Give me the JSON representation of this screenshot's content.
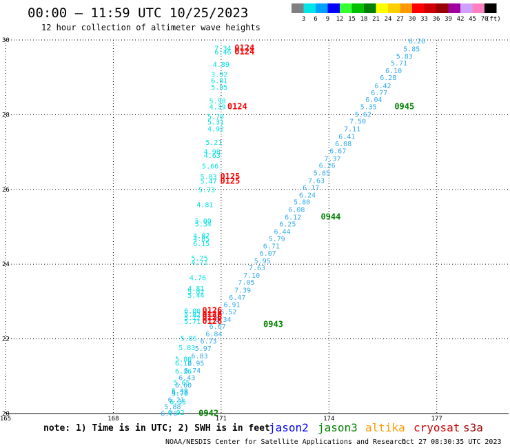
{
  "header": {
    "title": "00:00 – 11:59 UTC 10/25/2023",
    "subtitle": "12 hour collection of altimeter wave heights"
  },
  "colorbar": {
    "unit": "(ft)",
    "bins": [
      {
        "color": "#808080",
        "label": "3"
      },
      {
        "color": "#00e5e5",
        "label": "6"
      },
      {
        "color": "#00a0ff",
        "label": "9"
      },
      {
        "color": "#0000ff",
        "label": "12"
      },
      {
        "color": "#33ff33",
        "label": "15"
      },
      {
        "color": "#00c000",
        "label": "18"
      },
      {
        "color": "#008000",
        "label": "21"
      },
      {
        "color": "#ffff00",
        "label": "24"
      },
      {
        "color": "#ffd000",
        "label": "27"
      },
      {
        "color": "#ff9900",
        "label": "30"
      },
      {
        "color": "#ff0000",
        "label": "33"
      },
      {
        "color": "#cc0000",
        "label": "36"
      },
      {
        "color": "#990000",
        "label": "39"
      },
      {
        "color": "#a000a0",
        "label": "42"
      },
      {
        "color": "#d0a0ff",
        "label": "45"
      },
      {
        "color": "#ff80c0",
        "label": "70"
      },
      {
        "color": "#000000",
        "label": ""
      }
    ]
  },
  "map": {
    "lon_range": [
      165,
      179
    ],
    "lat_range": [
      20,
      30
    ],
    "lon_ticks": [
      "165",
      "168",
      "171",
      "174",
      "177"
    ],
    "lat_ticks": [
      "20",
      "22",
      "24",
      "26",
      "28",
      "30"
    ],
    "colors": {
      "cyan": "#00e0e0",
      "blue": "#33aaee",
      "time_red": "#ff0000",
      "time_green": "#008000"
    },
    "track_west": [
      {
        "lat": 29.79,
        "lon": 171.05,
        "v": "7.34"
      },
      {
        "lat": 29.69,
        "lon": 171.05,
        "v": "6.46"
      },
      {
        "lat": 29.35,
        "lon": 171.0,
        "v": "4.89"
      },
      {
        "lat": 29.09,
        "lon": 170.95,
        "v": "3.92"
      },
      {
        "lat": 28.92,
        "lon": 170.95,
        "v": "6.01"
      },
      {
        "lat": 28.75,
        "lon": 170.95,
        "v": "5.85"
      },
      {
        "lat": 28.38,
        "lon": 170.9,
        "v": "5.98"
      },
      {
        "lat": 28.22,
        "lon": 170.9,
        "v": "4.39"
      },
      {
        "lat": 27.96,
        "lon": 170.85,
        "v": "5.78"
      },
      {
        "lat": 27.81,
        "lon": 170.85,
        "v": "5.31"
      },
      {
        "lat": 27.63,
        "lon": 170.85,
        "v": "4.92"
      },
      {
        "lat": 27.27,
        "lon": 170.8,
        "v": "5.21"
      },
      {
        "lat": 27.02,
        "lon": 170.75,
        "v": "4.98"
      },
      {
        "lat": 26.92,
        "lon": 170.75,
        "v": "4.63"
      },
      {
        "lat": 26.63,
        "lon": 170.7,
        "v": "5.66"
      },
      {
        "lat": 26.35,
        "lon": 170.65,
        "v": "5.83"
      },
      {
        "lat": 26.23,
        "lon": 170.65,
        "v": "5.47"
      },
      {
        "lat": 26.0,
        "lon": 170.6,
        "v": "5.73"
      },
      {
        "lat": 25.6,
        "lon": 170.55,
        "v": "4.81"
      },
      {
        "lat": 25.17,
        "lon": 170.5,
        "v": "5.00"
      },
      {
        "lat": 25.08,
        "lon": 170.5,
        "v": "5.34"
      },
      {
        "lat": 24.77,
        "lon": 170.45,
        "v": "4.87"
      },
      {
        "lat": 24.69,
        "lon": 170.45,
        "v": "4.85"
      },
      {
        "lat": 24.56,
        "lon": 170.45,
        "v": "6.15"
      },
      {
        "lat": 24.17,
        "lon": 170.4,
        "v": "5.25"
      },
      {
        "lat": 24.06,
        "lon": 170.4,
        "v": "4.71"
      },
      {
        "lat": 23.64,
        "lon": 170.35,
        "v": "4.76"
      },
      {
        "lat": 23.36,
        "lon": 170.3,
        "v": "4.81"
      },
      {
        "lat": 23.27,
        "lon": 170.3,
        "v": "5.02"
      },
      {
        "lat": 23.17,
        "lon": 170.3,
        "v": "5.44"
      },
      {
        "lat": 22.76,
        "lon": 170.2,
        "v": "6.00"
      },
      {
        "lat": 22.66,
        "lon": 170.2,
        "v": "5.82"
      },
      {
        "lat": 22.57,
        "lon": 170.2,
        "v": "5.72"
      },
      {
        "lat": 22.47,
        "lon": 170.2,
        "v": "5.71"
      },
      {
        "lat": 22.02,
        "lon": 170.1,
        "v": "5.85"
      },
      {
        "lat": 21.77,
        "lon": 170.05,
        "v": "5.83"
      },
      {
        "lat": 21.47,
        "lon": 169.95,
        "v": "5.80"
      },
      {
        "lat": 21.36,
        "lon": 169.95,
        "v": "6.12"
      },
      {
        "lat": 21.14,
        "lon": 169.95,
        "v": "6.26"
      },
      {
        "lat": 20.84,
        "lon": 169.9,
        "v": "5.65"
      },
      {
        "lat": 20.62,
        "lon": 169.85,
        "v": "5.49"
      },
      {
        "lat": 20.54,
        "lon": 169.85,
        "v": "5.70"
      },
      {
        "lat": 20.32,
        "lon": 169.8,
        "v": "6.35"
      },
      {
        "lat": 20.04,
        "lon": 169.75,
        "v": "6.02"
      }
    ],
    "track_east": [
      {
        "lat": 29.98,
        "lon": 176.45,
        "v": "6.20"
      },
      {
        "lat": 29.77,
        "lon": 176.3,
        "v": "5.85"
      },
      {
        "lat": 29.58,
        "lon": 176.1,
        "v": "5.83"
      },
      {
        "lat": 29.39,
        "lon": 175.95,
        "v": "5.71"
      },
      {
        "lat": 29.19,
        "lon": 175.8,
        "v": "6.10"
      },
      {
        "lat": 29.0,
        "lon": 175.65,
        "v": "6.28"
      },
      {
        "lat": 28.78,
        "lon": 175.5,
        "v": "6.42"
      },
      {
        "lat": 28.6,
        "lon": 175.4,
        "v": "6.77"
      },
      {
        "lat": 28.41,
        "lon": 175.25,
        "v": "6.04"
      },
      {
        "lat": 28.22,
        "lon": 175.1,
        "v": "5.35"
      },
      {
        "lat": 28.02,
        "lon": 174.95,
        "v": "5.62"
      },
      {
        "lat": 27.83,
        "lon": 174.8,
        "v": "7.50"
      },
      {
        "lat": 27.63,
        "lon": 174.65,
        "v": "7.11"
      },
      {
        "lat": 27.43,
        "lon": 174.5,
        "v": "6.41"
      },
      {
        "lat": 27.23,
        "lon": 174.4,
        "v": "6.08"
      },
      {
        "lat": 27.04,
        "lon": 174.25,
        "v": "6.67"
      },
      {
        "lat": 26.84,
        "lon": 174.1,
        "v": "7.37"
      },
      {
        "lat": 26.65,
        "lon": 173.95,
        "v": "6.26"
      },
      {
        "lat": 26.45,
        "lon": 173.8,
        "v": "5.85"
      },
      {
        "lat": 26.25,
        "lon": 173.65,
        "v": "7.63"
      },
      {
        "lat": 26.06,
        "lon": 173.5,
        "v": "6.17"
      },
      {
        "lat": 25.86,
        "lon": 173.4,
        "v": "6.24"
      },
      {
        "lat": 25.67,
        "lon": 173.25,
        "v": "5.80"
      },
      {
        "lat": 25.47,
        "lon": 173.1,
        "v": "6.08"
      },
      {
        "lat": 25.27,
        "lon": 173.0,
        "v": "6.12"
      },
      {
        "lat": 25.08,
        "lon": 172.85,
        "v": "6.25"
      },
      {
        "lat": 24.88,
        "lon": 172.7,
        "v": "6.44"
      },
      {
        "lat": 24.69,
        "lon": 172.55,
        "v": "5.79"
      },
      {
        "lat": 24.49,
        "lon": 172.4,
        "v": "6.71"
      },
      {
        "lat": 24.3,
        "lon": 172.3,
        "v": "6.07"
      },
      {
        "lat": 24.1,
        "lon": 172.15,
        "v": "5.95"
      },
      {
        "lat": 23.91,
        "lon": 172.0,
        "v": "7.63"
      },
      {
        "lat": 23.71,
        "lon": 171.85,
        "v": "7.10"
      },
      {
        "lat": 23.52,
        "lon": 171.7,
        "v": "7.05"
      },
      {
        "lat": 23.31,
        "lon": 171.6,
        "v": "7.39"
      },
      {
        "lat": 23.12,
        "lon": 171.45,
        "v": "6.47"
      },
      {
        "lat": 22.92,
        "lon": 171.3,
        "v": "6.91"
      },
      {
        "lat": 22.73,
        "lon": 171.2,
        "v": "6.52"
      },
      {
        "lat": 22.53,
        "lon": 171.05,
        "v": "6.34"
      },
      {
        "lat": 22.34,
        "lon": 170.9,
        "v": "6.67"
      },
      {
        "lat": 22.14,
        "lon": 170.8,
        "v": "6.84"
      },
      {
        "lat": 21.95,
        "lon": 170.65,
        "v": "6.73"
      },
      {
        "lat": 21.75,
        "lon": 170.5,
        "v": "5.97"
      },
      {
        "lat": 21.55,
        "lon": 170.4,
        "v": "6.83"
      },
      {
        "lat": 21.36,
        "lon": 170.3,
        "v": "6.95"
      },
      {
        "lat": 21.16,
        "lon": 170.2,
        "v": "6.74"
      },
      {
        "lat": 20.97,
        "lon": 170.05,
        "v": "6.43"
      },
      {
        "lat": 20.77,
        "lon": 169.95,
        "v": "6.60"
      },
      {
        "lat": 20.58,
        "lon": 169.85,
        "v": "6.58"
      },
      {
        "lat": 20.38,
        "lon": 169.75,
        "v": "6.21"
      },
      {
        "lat": 20.19,
        "lon": 169.65,
        "v": "5.88"
      },
      {
        "lat": 20.01,
        "lon": 169.55,
        "v": "6.76"
      }
    ],
    "time_labels": [
      {
        "lat": 29.79,
        "lon": 171.65,
        "v": "0124",
        "c": "red"
      },
      {
        "lat": 29.69,
        "lon": 171.65,
        "v": "0124",
        "c": "red"
      },
      {
        "lat": 28.22,
        "lon": 171.45,
        "v": "0124",
        "c": "red"
      },
      {
        "lat": 26.35,
        "lon": 171.25,
        "v": "0125",
        "c": "red"
      },
      {
        "lat": 26.23,
        "lon": 171.25,
        "v": "0125",
        "c": "red"
      },
      {
        "lat": 22.76,
        "lon": 170.75,
        "v": "0126",
        "c": "red"
      },
      {
        "lat": 22.66,
        "lon": 170.75,
        "v": "0126",
        "c": "red"
      },
      {
        "lat": 22.57,
        "lon": 170.75,
        "v": "0126",
        "c": "red"
      },
      {
        "lat": 22.47,
        "lon": 170.75,
        "v": "0126",
        "c": "red"
      },
      {
        "lat": 28.22,
        "lon": 176.1,
        "v": "0945",
        "c": "green"
      },
      {
        "lat": 25.27,
        "lon": 174.05,
        "v": "0944",
        "c": "green"
      },
      {
        "lat": 22.39,
        "lon": 172.45,
        "v": "0943",
        "c": "green"
      },
      {
        "lat": 20.01,
        "lon": 170.65,
        "v": "0942",
        "c": "green"
      }
    ]
  },
  "footer": {
    "note": "note: 1) Time is in UTC; 2) SWH is in feet",
    "satellites": [
      {
        "name": "jason2",
        "color": "#0000ff"
      },
      {
        "name": "jason3",
        "color": "#008000"
      },
      {
        "name": "altika",
        "color": "#ff9900"
      },
      {
        "name": "cryosat",
        "color": "#cc0000"
      },
      {
        "name": "s3a",
        "color": "#990000"
      }
    ],
    "credit": "NOAA/NESDIS Center for Satellite Applications and Research",
    "timestamp": "Oct 27 08:30:35 UTC 2023"
  }
}
